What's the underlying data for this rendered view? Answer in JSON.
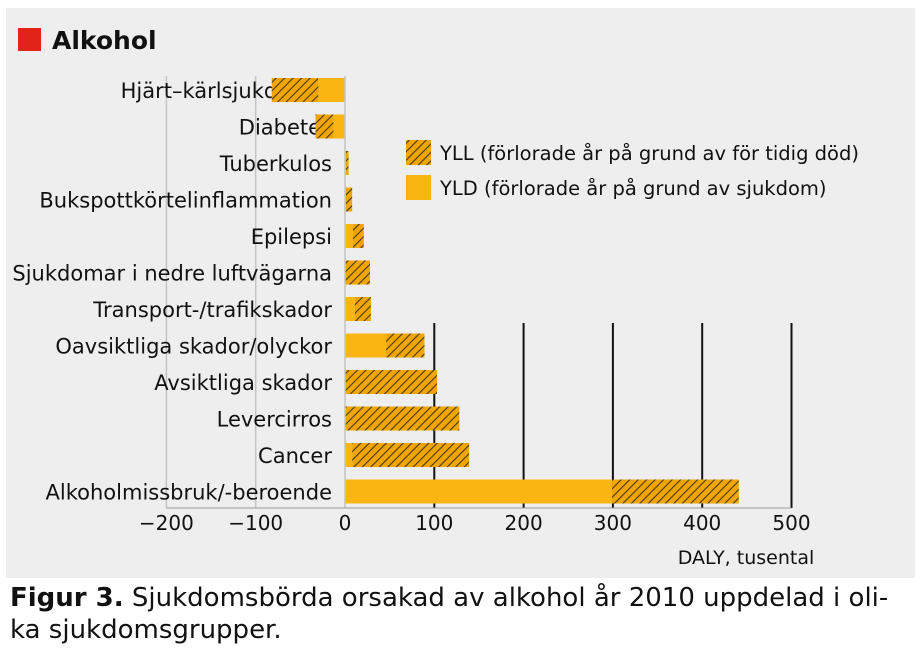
{
  "chart_data": {
    "type": "bar",
    "orientation": "horizontal",
    "stacked": true,
    "title": "Alkohol",
    "xlabel": "DALY, tusental",
    "ylabel": "",
    "xlim": [
      -200,
      500
    ],
    "xticks": [
      -200,
      -100,
      0,
      100,
      200,
      300,
      400,
      500
    ],
    "xtick_labels": [
      "−200",
      "−100",
      "0",
      "100",
      "200",
      "300",
      "400",
      "500"
    ],
    "grid": "vertical lines at 100-500",
    "legend_position": "right",
    "categories": [
      "Hjärt–kärlsjukdomar",
      "Diabetes",
      "Tuberkulos",
      "Bukspottkörtelinflammation",
      "Epilepsi",
      "Sjukdomar i nedre luftvägarna",
      "Transport-/trafikskador",
      "Oavsiktliga skador/olyckor",
      "Avsiktliga skador",
      "Levercirros",
      "Cancer",
      "Alkoholmissbruk/-beroende"
    ],
    "series": [
      {
        "name": "YLD (förlorade år på grund av sjukdom)",
        "key": "yld",
        "values": [
          -30,
          -13,
          1,
          1,
          9,
          0,
          11,
          46,
          0,
          0,
          8,
          299
        ]
      },
      {
        "name": "YLL (förlorade år på grund av för tidig död)",
        "key": "yll",
        "values": [
          -52,
          -20,
          3,
          7,
          12,
          28,
          18,
          43,
          103,
          128,
          131,
          142
        ]
      }
    ],
    "colors": {
      "yld": "#fbb512",
      "yll": "#f0a500",
      "hatch": "#4a3a10",
      "panel": "#eeeeee",
      "title_square": "#e2231a"
    }
  },
  "caption": {
    "prefix": "Figur 3.",
    "text": " Sjukdomsbörda orsakad av alkohol år 2010 uppdelad i oli-ka sjukdomsgrupper."
  }
}
